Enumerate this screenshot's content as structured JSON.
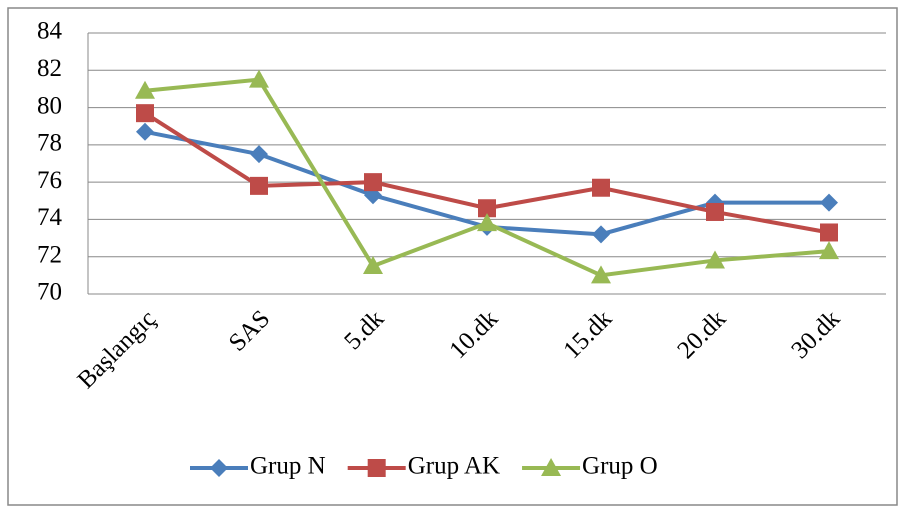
{
  "chart_data": {
    "type": "line",
    "categories": [
      "Başlangıç",
      "SAS",
      "5.dk",
      "10.dk",
      "15.dk",
      "20.dk",
      "30.dk"
    ],
    "series": [
      {
        "name": "Grup N",
        "color": "#4a7ebb",
        "marker": "diamond",
        "values": [
          78.7,
          77.5,
          75.3,
          73.6,
          73.2,
          74.9,
          74.9
        ]
      },
      {
        "name": "Grup AK",
        "color": "#be4b48",
        "marker": "square",
        "values": [
          79.7,
          75.8,
          76.0,
          74.6,
          75.7,
          74.4,
          73.3
        ]
      },
      {
        "name": "Grup O",
        "color": "#98b954",
        "marker": "triangle",
        "values": [
          80.9,
          81.5,
          71.5,
          73.8,
          71.0,
          71.8,
          72.3
        ]
      }
    ],
    "ylim": [
      70,
      84
    ],
    "yticks": [
      70,
      72,
      74,
      76,
      78,
      80,
      82,
      84
    ],
    "grid": true,
    "legend": "bottom"
  }
}
